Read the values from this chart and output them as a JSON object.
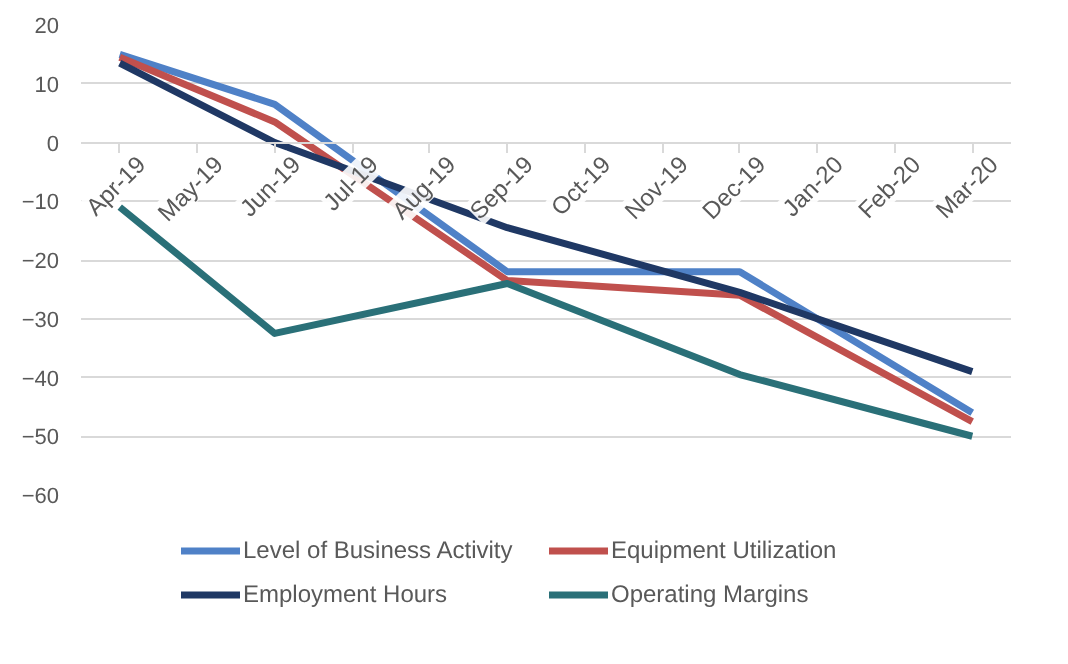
{
  "chart_data": {
    "type": "line",
    "categories": [
      "Apr-19",
      "May-19",
      "Jun-19",
      "Jul-19",
      "Aug-19",
      "Sep-19",
      "Oct-19",
      "Nov-19",
      "Dec-19",
      "Jan-20",
      "Feb-20",
      "Mar-20"
    ],
    "series": [
      {
        "name": "Level of Business Activity",
        "color": "#4f81c7",
        "values": [
          15,
          null,
          6.5,
          null,
          null,
          -22,
          null,
          null,
          -22,
          null,
          null,
          -46
        ]
      },
      {
        "name": "Equipment Utilization",
        "color": "#c0504d",
        "values": [
          14.5,
          null,
          3.5,
          null,
          null,
          -23.5,
          null,
          null,
          -26,
          null,
          null,
          -47.5
        ]
      },
      {
        "name": "Employment Hours",
        "color": "#1f3864",
        "values": [
          13.5,
          null,
          0,
          null,
          null,
          -14.5,
          null,
          null,
          -25.5,
          null,
          null,
          -39
        ]
      },
      {
        "name": "Operating Margins",
        "color": "#2a7078",
        "values": [
          -11,
          null,
          -32.5,
          null,
          null,
          -24,
          null,
          null,
          -39.5,
          null,
          null,
          -50
        ]
      }
    ],
    "ylim": [
      -60,
      20
    ],
    "yticks": [
      -60,
      -50,
      -40,
      -30,
      -20,
      -10,
      0,
      10,
      20
    ],
    "grid": "y",
    "legend": "bottom",
    "line_style": "solid"
  }
}
